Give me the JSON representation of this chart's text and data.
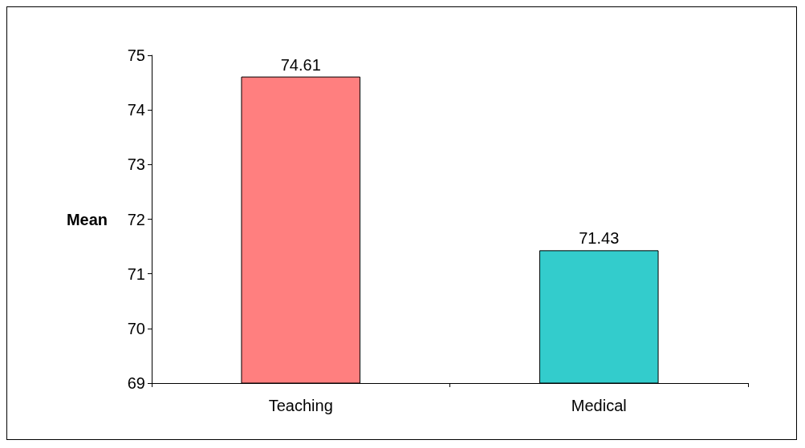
{
  "chart_data": {
    "type": "bar",
    "ylabel": "Mean",
    "categories": [
      "Teaching",
      "Medical"
    ],
    "values": [
      74.61,
      71.43
    ],
    "colors": [
      "#ff7f7f",
      "#33cccc"
    ],
    "ylim": [
      69,
      75
    ],
    "yticks": [
      69,
      70,
      71,
      72,
      73,
      74,
      75
    ],
    "grid": false,
    "data_labels": true
  }
}
